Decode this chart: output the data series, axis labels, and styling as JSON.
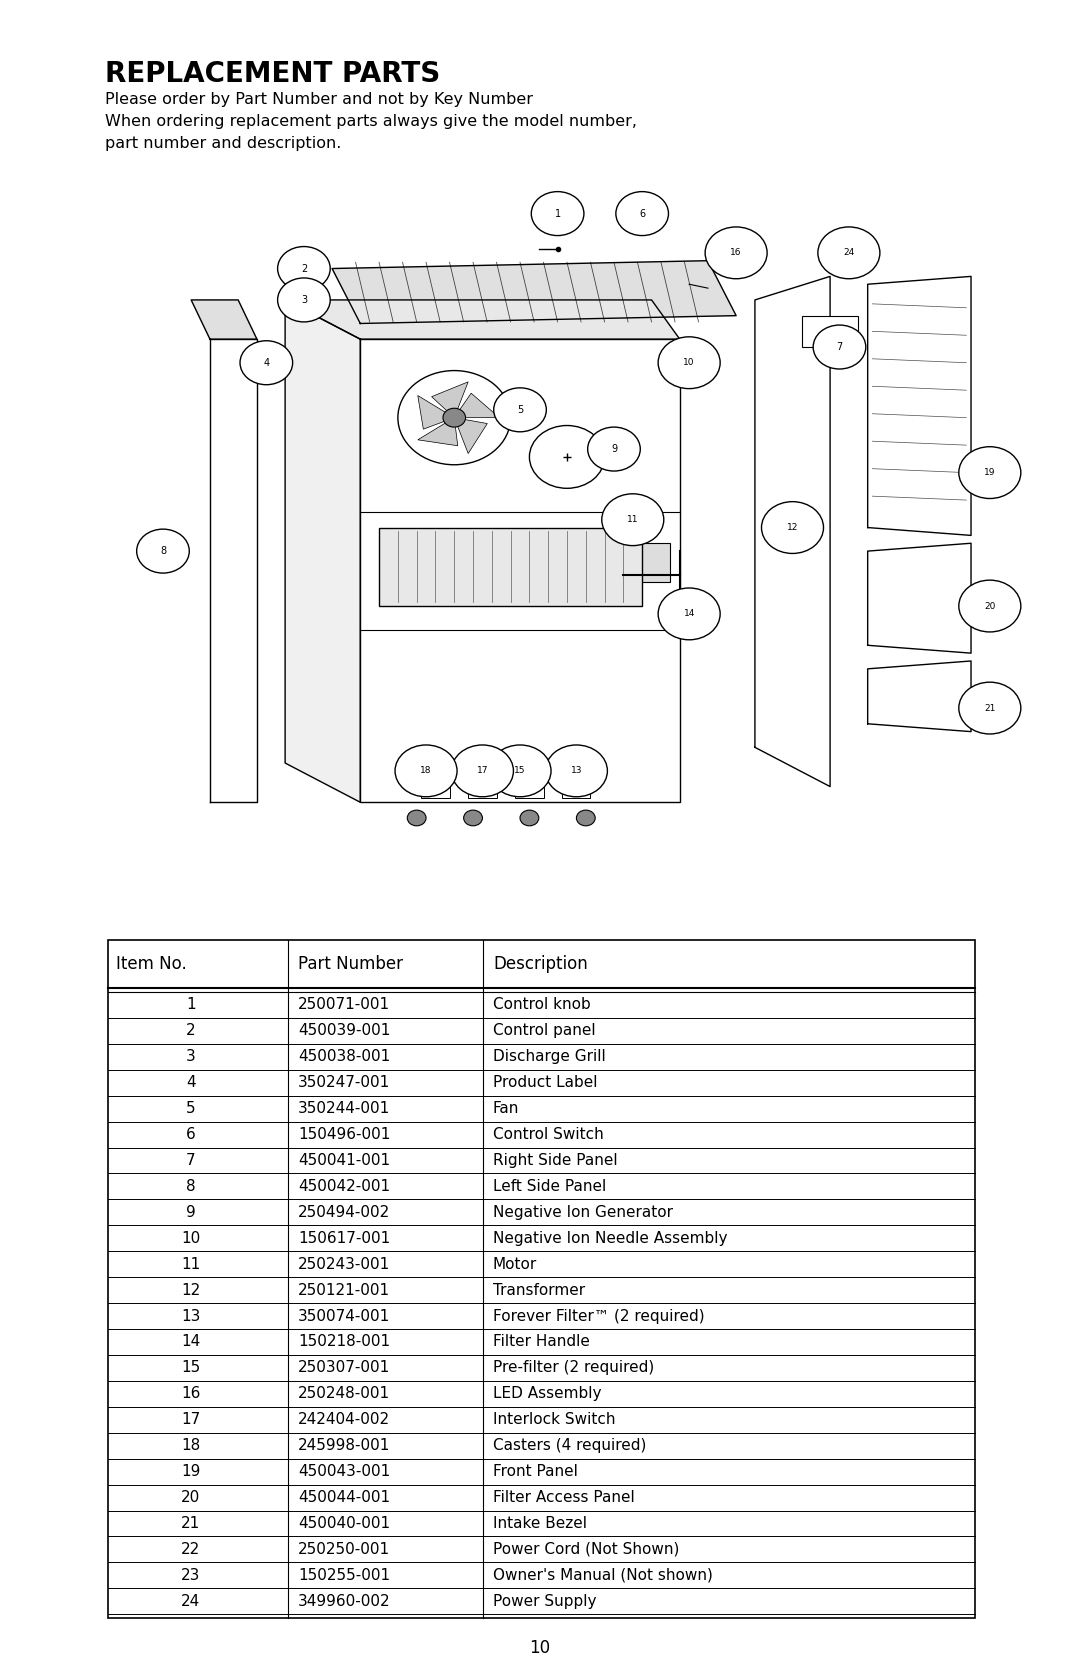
{
  "title": "REPLACEMENT PARTS",
  "subtitle_line1": "Please order by Part Number and not by Key Number",
  "subtitle_line2": "When ordering replacement parts always give the model number,",
  "subtitle_line3": "part number and description.",
  "table_headers": [
    "Item No.",
    "Part Number",
    "Description"
  ],
  "table_rows": [
    [
      "1",
      "250071-001",
      "Control knob"
    ],
    [
      "2",
      "450039-001",
      "Control panel"
    ],
    [
      "3",
      "450038-001",
      "Discharge Grill"
    ],
    [
      "4",
      "350247-001",
      "Product Label"
    ],
    [
      "5",
      "350244-001",
      "Fan"
    ],
    [
      "6",
      "150496-001",
      "Control Switch"
    ],
    [
      "7",
      "450041-001",
      "Right Side Panel"
    ],
    [
      "8",
      "450042-001",
      "Left Side Panel"
    ],
    [
      "9",
      "250494-002",
      "Negative Ion Generator"
    ],
    [
      "10",
      "150617-001",
      "Negative Ion Needle Assembly"
    ],
    [
      "11",
      "250243-001",
      "Motor"
    ],
    [
      "12",
      "250121-001",
      "Transformer"
    ],
    [
      "13",
      "350074-001",
      "Forever Filter™ (2 required)"
    ],
    [
      "14",
      "150218-001",
      "Filter Handle"
    ],
    [
      "15",
      "250307-001",
      "Pre-filter (2 required)"
    ],
    [
      "16",
      "250248-001",
      "LED Assembly"
    ],
    [
      "17",
      "242404-002",
      "Interlock Switch"
    ],
    [
      "18",
      "245998-001",
      "Casters (4 required)"
    ],
    [
      "19",
      "450043-001",
      "Front Panel"
    ],
    [
      "20",
      "450044-001",
      "Filter Access Panel"
    ],
    [
      "21",
      "450040-001",
      "Intake Bezel"
    ],
    [
      "22",
      "250250-001",
      "Power Cord (Not Shown)"
    ],
    [
      "23",
      "150255-001",
      "Owner's Manual (Not shown)"
    ],
    [
      "24",
      "349960-002",
      "Power Supply"
    ]
  ],
  "page_number": "10",
  "bg_color": "#ffffff",
  "text_color": "#000000",
  "title_fontsize": 20,
  "subtitle_fontsize": 11.5,
  "table_header_fontsize": 12,
  "table_row_fontsize": 11
}
